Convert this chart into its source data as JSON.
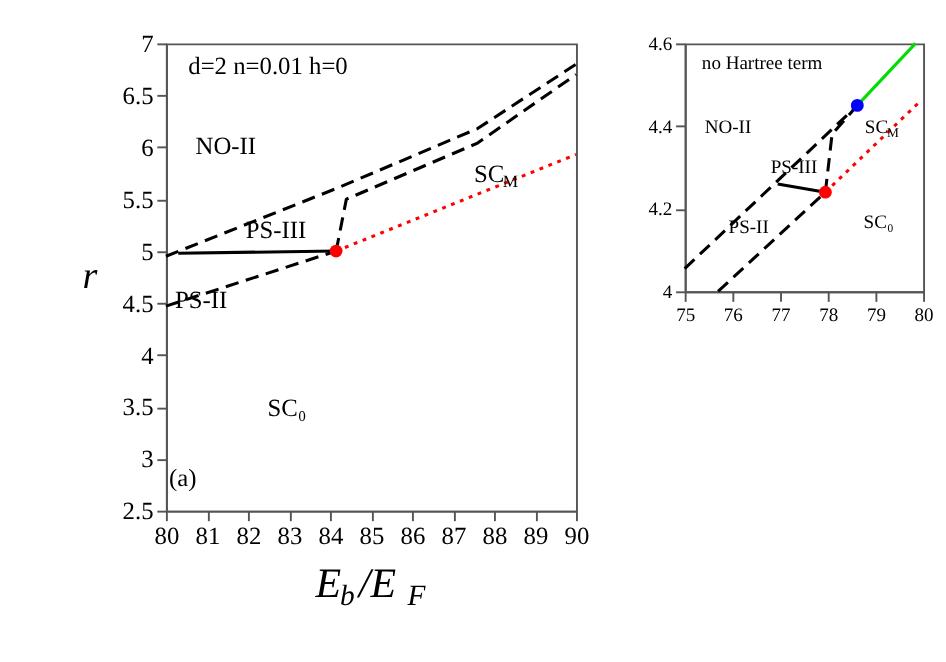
{
  "chart_data": [
    {
      "type": "line",
      "xlabel": "E$_{b}$/E$_{F}$",
      "ylabel": "r",
      "xlim": [
        80,
        90
      ],
      "ylim": [
        2.5,
        7
      ],
      "xticks": [
        80,
        81,
        82,
        83,
        84,
        85,
        86,
        87,
        88,
        89,
        90
      ],
      "yticks": [
        2.5,
        3,
        3.5,
        4,
        4.5,
        5,
        5.5,
        6,
        6.5,
        7
      ],
      "grid": false,
      "series": [
        {
          "line_style": "dashed",
          "color": "#000000",
          "x": [
            80,
            84.2,
            87.6,
            90
          ],
          "values": [
            4.95,
            5.61,
            6.18,
            6.8
          ]
        },
        {
          "line_style": "dashed",
          "color": "#000000",
          "x": [
            84.15,
            84.4,
            87.6,
            90
          ],
          "values": [
            5.0,
            5.5,
            6.04,
            6.7
          ]
        },
        {
          "line_style": "dashed",
          "color": "#000000",
          "x": [
            80,
            84.15
          ],
          "values": [
            4.47,
            5.0
          ]
        },
        {
          "line_style": "solid",
          "color": "#000000",
          "x": [
            80.3,
            84.15
          ],
          "values": [
            4.98,
            5.0
          ]
        },
        {
          "line_style": "dotted",
          "color": "#ff0000",
          "x": [
            84.15,
            90
          ],
          "values": [
            5.0,
            5.93
          ]
        },
        {
          "type": "scatter",
          "marker": "circle",
          "color": "#ff0000",
          "x": [
            84.15
          ],
          "values": [
            5.0
          ]
        }
      ],
      "annotations": [
        "d=2 n=0.01 h=0",
        "NO-II",
        "PS-III",
        "PS-II",
        "SC$_{M}$",
        "SC₀",
        "(a)"
      ]
    },
    {
      "type": "line",
      "xlim": [
        75,
        80
      ],
      "ylim": [
        4,
        4.6
      ],
      "xticks": [
        75,
        76,
        77,
        78,
        79,
        80
      ],
      "yticks": [
        4,
        4.2,
        4.4,
        4.6
      ],
      "grid": false,
      "series": [
        {
          "line_style": "dashed",
          "color": "#000000",
          "x": [
            75,
            78.62
          ],
          "values": [
            4.055,
            4.45
          ]
        },
        {
          "line_style": "dashed",
          "color": "#000000",
          "x": [
            75.7,
            77.95
          ],
          "values": [
            4.0,
            4.24
          ]
        },
        {
          "line_style": "dashed",
          "color": "#000000",
          "x": [
            77.95,
            78.09,
            78.62
          ],
          "values": [
            4.24,
            4.38,
            4.45
          ]
        },
        {
          "line_style": "solid",
          "color": "#000000",
          "x": [
            76.95,
            77.95
          ],
          "values": [
            4.26,
            4.24
          ]
        },
        {
          "line_style": "dotted",
          "color": "#ff0000",
          "x": [
            77.95,
            79.94
          ],
          "values": [
            4.24,
            4.46
          ]
        },
        {
          "line_style": "solid",
          "color": "#00dd00",
          "x": [
            78.62,
            79.84
          ],
          "values": [
            4.45,
            4.6
          ]
        },
        {
          "type": "scatter",
          "marker": "circle",
          "color": "#ff0000",
          "x": [
            77.95
          ],
          "values": [
            4.24
          ]
        },
        {
          "type": "scatter",
          "marker": "circle",
          "color": "#0000ff",
          "x": [
            78.62
          ],
          "values": [
            4.45
          ]
        }
      ],
      "annotations": [
        "no Hartree term",
        "NO-II",
        "SC$_{M}$",
        "PS-III",
        "PS-II",
        "SC₀"
      ]
    }
  ]
}
